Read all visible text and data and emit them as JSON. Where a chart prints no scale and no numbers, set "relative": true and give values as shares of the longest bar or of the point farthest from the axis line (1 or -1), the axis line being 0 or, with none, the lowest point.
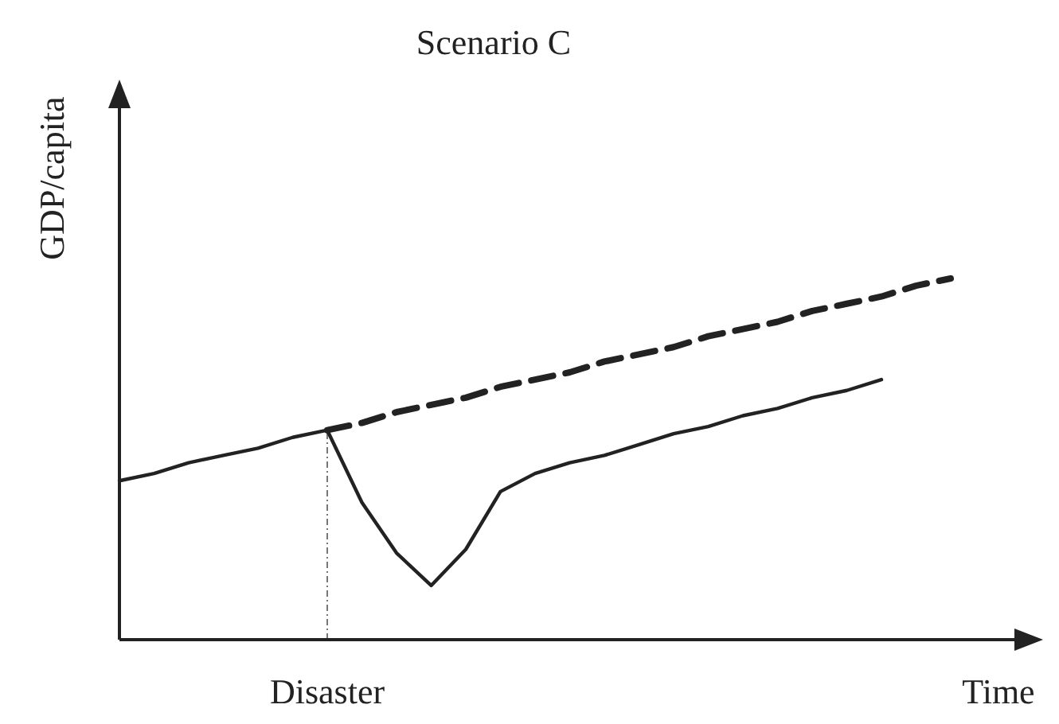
{
  "chart_data": {
    "type": "line",
    "title": "Scenario C",
    "xlabel": "Time",
    "ylabel": "GDP/capita",
    "relative": true,
    "categories": [
      null,
      null,
      null,
      null,
      null,
      null,
      null,
      null,
      null,
      null,
      null,
      null,
      null,
      null,
      null,
      null,
      null,
      null,
      null,
      null,
      null,
      null,
      null,
      null,
      null
    ],
    "annotations": [
      "Disaster"
    ],
    "series": [
      {
        "color": "#222222",
        "line_style": "solid",
        "values": [
          0.44,
          0.46,
          0.49,
          0.51,
          0.53,
          0.56,
          0.58,
          0.38,
          0.24,
          0.15,
          0.25,
          0.41,
          0.46,
          0.49,
          0.51,
          0.54,
          0.57,
          0.59,
          0.62,
          0.64,
          0.67,
          0.69,
          0.72,
          null,
          null
        ]
      },
      {
        "color": "#222222",
        "line_style": "dashed",
        "values": [
          null,
          null,
          null,
          null,
          null,
          null,
          0.58,
          0.6,
          0.63,
          0.65,
          0.67,
          0.7,
          0.72,
          0.74,
          0.77,
          0.79,
          0.81,
          0.84,
          0.86,
          0.88,
          0.91,
          0.93,
          0.95,
          0.98,
          1.0
        ]
      }
    ],
    "marker": "none"
  }
}
